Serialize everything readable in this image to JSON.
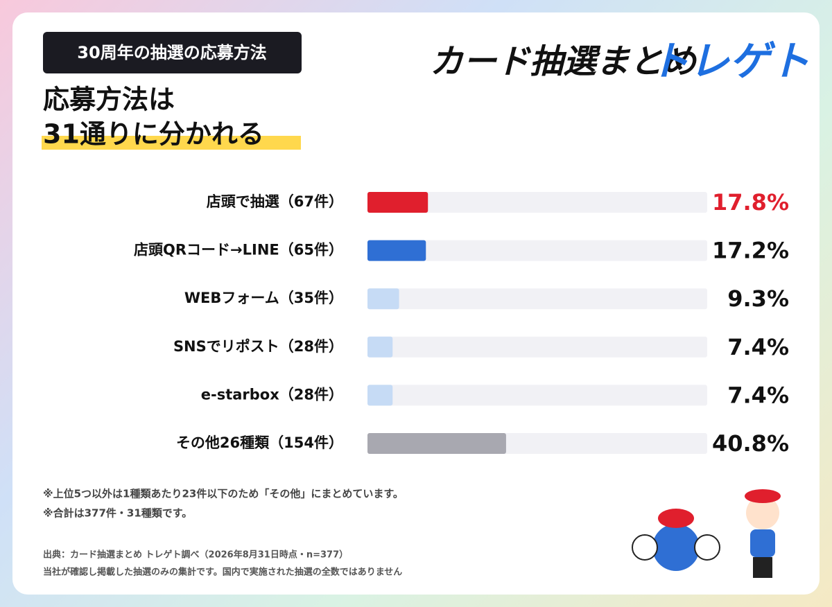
{
  "header": {
    "badge": "30周年の抽選の応募方法",
    "headline": [
      "応募方法は",
      "31通りに分かれる"
    ],
    "logo": [
      "カード抽選まとめ",
      "トレゲト"
    ]
  },
  "chart_data": {
    "type": "bar",
    "orientation": "horizontal",
    "categories": [
      "店頭で抽選（67件）",
      "店頭QRコード→LINE（65件）",
      "WEBフォーム（35件）",
      "SNSでリポスト（28件）",
      "e-starbox（28件）",
      "その他26種類（154件）"
    ],
    "values": [
      17.8,
      17.2,
      9.3,
      7.4,
      7.4,
      40.8
    ],
    "value_labels": [
      "17.8%",
      "17.2%",
      "9.3%",
      "7.4%",
      "7.4%",
      "40.8%"
    ],
    "colors": [
      "#e01f2d",
      "#2f6fd4",
      "#c6dbf5",
      "#c6dbf5",
      "#c6dbf5",
      "#a8a8b0"
    ],
    "value_label_colors": [
      "#e01f2d",
      "#111111",
      "#111111",
      "#111111",
      "#111111",
      "#111111"
    ],
    "track_color": "#f1f1f5",
    "xlim": [
      0,
      100
    ]
  },
  "notes": [
    "※上位5つ以外は1種類あたり23件以下のため「その他」にまとめています。",
    "※合計は377件・31種類です。"
  ],
  "source": [
    "出典：カード抽選まとめ トレゲト調べ（2026年8月31日時点・n=377）",
    "当社が確認し掲載した抽選のみの集計です。国内で実施された抽選の全数ではありません"
  ]
}
